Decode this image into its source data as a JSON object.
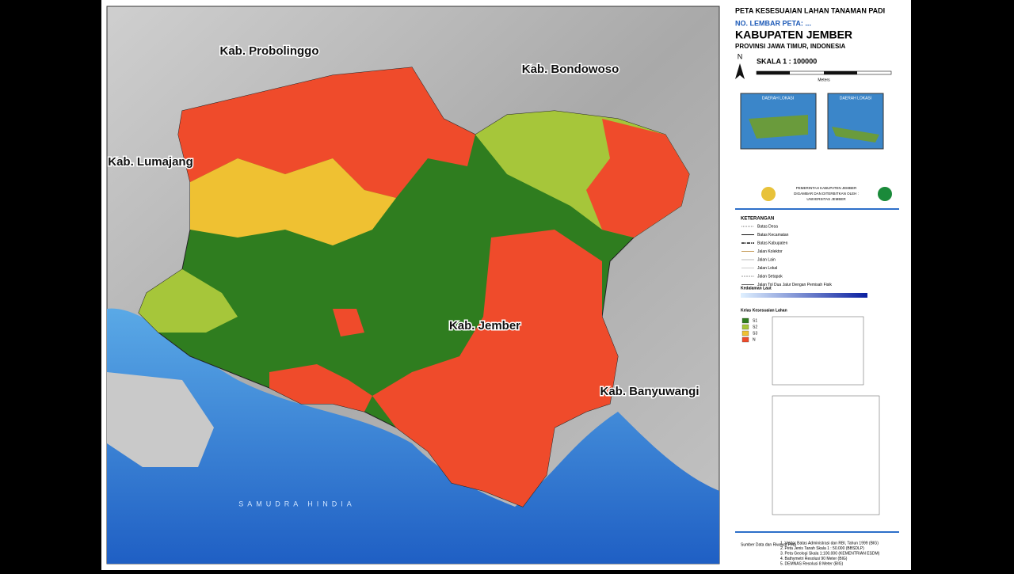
{
  "map": {
    "regions": [
      "Kab. Probolinggo",
      "Kab. Bondowoso",
      "Kab. Lumajang",
      "Kab. Jember",
      "Kab. Banyuwangi"
    ],
    "sea": "SAMUDRA HINDIA"
  },
  "panel": {
    "title": "PETA KESESUAIAN LAHAN TANAMAN PADI",
    "sheet": "NO. LEMBAR PETA: ...",
    "heading": "KABUPATEN JEMBER",
    "subheading": "PROVINSI JAWA TIMUR, INDONESIA",
    "north": "N",
    "scale": "SKALA 1 : 100000",
    "scale_unit": "Meters",
    "inset_labels": [
      "DAERAH LOKASI",
      "DAERAH LOKASI"
    ],
    "publisher": [
      "PEMERINTAH KABUPATEN JEMBER",
      "DIGAMBAR DAN DITERBITKAN OLEH :",
      "UNIVERSITAS JEMBER"
    ],
    "legend_title": "KETERANGAN",
    "lines": [
      "Batas Desa",
      "Batas Kecamatan",
      "Batas Kabupaten",
      "Jalan Kolektor",
      "Jalan Lain",
      "Jalan Lokal",
      "Jalan Setapak",
      "Jalan Tol Dua Jalur Dengan Pemisah Fisik"
    ],
    "depth_title": "Kedalaman Laut",
    "class_title": "Kelas Kesesuaian Lahan",
    "classes": [
      {
        "name": "S1",
        "color": "#2f7d1f"
      },
      {
        "name": "S2",
        "color": "#a6c63a"
      },
      {
        "name": "S3",
        "color": "#efc132"
      },
      {
        "name": "N",
        "color": "#ef4b2b"
      }
    ],
    "source_title": "Sumber Data dan Riwayat Peta",
    "sources": [
      "1. Vektor Batas Administrasi dan RBI, Tahun 1999 (BIG)",
      "2. Peta Jenis Tanah Skala 1 : 50.000 (BBSDLP)",
      "3. Peta Geologi Skala 1:100.000 (KEMENTRIAN ESDM)",
      "4. Bathymetri Resolusi 90 Meter (BIG)",
      "5. DEMNAS Resolusi 8 Meter (BIG)"
    ]
  }
}
